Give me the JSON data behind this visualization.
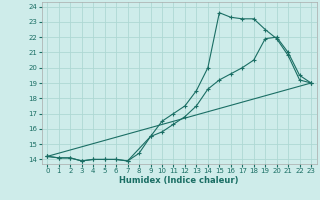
{
  "xlabel": "Humidex (Indice chaleur)",
  "bg_color": "#ceecea",
  "grid_color": "#aed8d4",
  "line_color": "#1a6e64",
  "xlim": [
    -0.5,
    23.5
  ],
  "ylim": [
    13.7,
    24.3
  ],
  "yticks": [
    14,
    15,
    16,
    17,
    18,
    19,
    20,
    21,
    22,
    23,
    24
  ],
  "xticks": [
    0,
    1,
    2,
    3,
    4,
    5,
    6,
    7,
    8,
    9,
    10,
    11,
    12,
    13,
    14,
    15,
    16,
    17,
    18,
    19,
    20,
    21,
    22,
    23
  ],
  "series1_x": [
    0,
    1,
    2,
    3,
    4,
    5,
    6,
    7,
    9,
    10,
    11,
    12,
    13,
    14,
    15,
    16,
    17,
    18,
    19,
    20,
    21,
    22,
    23
  ],
  "series1_y": [
    14.2,
    14.1,
    14.1,
    13.9,
    14.0,
    14.0,
    14.0,
    13.9,
    15.5,
    16.5,
    17.0,
    17.5,
    18.5,
    20.0,
    23.6,
    23.3,
    23.2,
    23.2,
    22.5,
    21.9,
    20.8,
    19.2,
    19.0
  ],
  "series2_x": [
    0,
    1,
    2,
    3,
    4,
    5,
    6,
    7,
    8,
    9,
    10,
    11,
    12,
    13,
    14,
    15,
    16,
    17,
    18,
    19,
    20,
    21,
    22,
    23
  ],
  "series2_y": [
    14.2,
    14.1,
    14.1,
    13.9,
    14.0,
    14.0,
    14.0,
    13.9,
    14.4,
    15.5,
    15.8,
    16.3,
    16.8,
    17.5,
    18.6,
    19.2,
    19.6,
    20.0,
    20.5,
    21.9,
    22.0,
    21.0,
    19.5,
    19.0
  ],
  "series3_x": [
    0,
    23
  ],
  "series3_y": [
    14.2,
    19.0
  ]
}
